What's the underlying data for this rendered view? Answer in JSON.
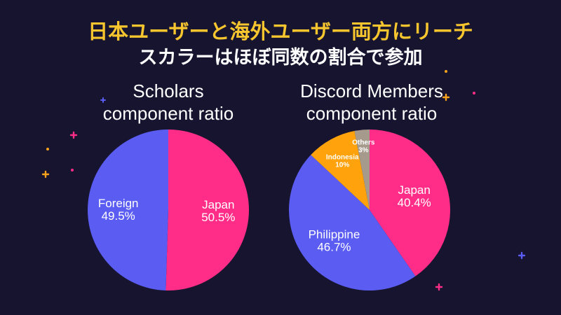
{
  "header": {
    "line1": "日本ユーザーと海外ユーザー両方にリーチ",
    "line2": "スカラーはほぼ同数の割合で参加"
  },
  "colors": {
    "background": "#17142f",
    "headline_accent": "#f7c62e",
    "pink": "#ff2d87",
    "blue": "#5a5cf2",
    "orange": "#ffa20c",
    "gray": "#a59a8c"
  },
  "chart_data": [
    {
      "type": "pie",
      "title_lines": [
        "Scholars",
        "component ratio"
      ],
      "slices": [
        {
          "label": "Japan",
          "value": 50.5,
          "display": "50.5%",
          "color": "#ff2d87"
        },
        {
          "label": "Foreign",
          "value": 49.5,
          "display": "49.5%",
          "color": "#5a5cf2"
        }
      ]
    },
    {
      "type": "pie",
      "title_lines": [
        "Discord Members",
        "component ratio"
      ],
      "slices": [
        {
          "label": "Japan",
          "value": 40.4,
          "display": "40.4%",
          "color": "#ff2d87"
        },
        {
          "label": "Philippine",
          "value": 46.7,
          "display": "46.7%",
          "color": "#5a5cf2"
        },
        {
          "label": "Indonesia",
          "value": 10,
          "display": "10%",
          "color": "#ffa20c"
        },
        {
          "label": "Others",
          "value": 3,
          "display": "3%",
          "color": "#a59a8c"
        }
      ]
    }
  ]
}
